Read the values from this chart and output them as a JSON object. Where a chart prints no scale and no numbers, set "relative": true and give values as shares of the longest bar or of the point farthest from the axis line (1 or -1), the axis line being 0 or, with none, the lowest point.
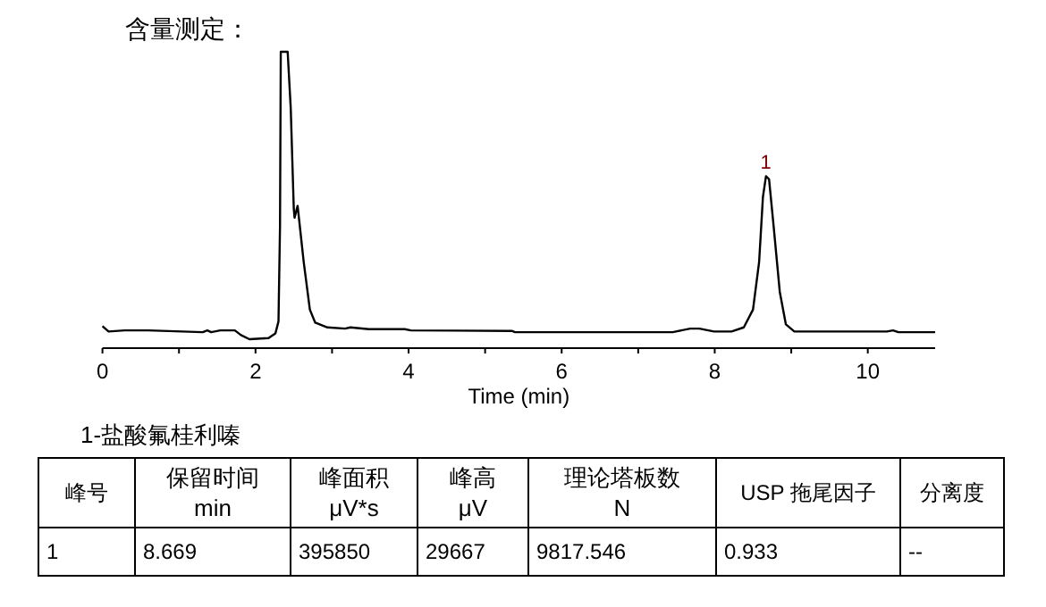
{
  "chart_data": {
    "type": "line",
    "title": "含量测定：",
    "xlabel": "Time (min)",
    "relative": true,
    "color": "#000000",
    "xlim": [
      0,
      10.88
    ],
    "xticks": [
      0,
      {
        "value": 1,
        "label": null
      },
      2,
      {
        "value": 3,
        "label": null
      },
      4,
      {
        "value": 5,
        "label": null
      },
      6,
      {
        "value": 7,
        "label": null
      },
      8,
      {
        "value": 9,
        "label": null
      },
      10
    ],
    "x": [
      0,
      0.08,
      0.29,
      0.6,
      1.31,
      1.37,
      1.42,
      1.54,
      1.73,
      1.81,
      1.92,
      2.17,
      2.26,
      2.3,
      2.32,
      2.33,
      2.42,
      2.46,
      2.5,
      2.51,
      2.55,
      2.63,
      2.71,
      2.78,
      2.94,
      3.17,
      3.24,
      3.48,
      3.95,
      4.03,
      5.35,
      5.39,
      7.45,
      7.68,
      7.8,
      7.99,
      8.22,
      8.38,
      8.5,
      8.58,
      8.63,
      8.67,
      8.71,
      8.77,
      8.85,
      8.93,
      9.04,
      10.25,
      10.33,
      10.4,
      10.88
    ],
    "values": [
      0.074,
      0.056,
      0.06,
      0.06,
      0.054,
      0.06,
      0.054,
      0.06,
      0.06,
      0.044,
      0.03,
      0.034,
      0.05,
      0.09,
      0.41,
      1.0,
      1.0,
      0.81,
      0.47,
      0.44,
      0.48,
      0.29,
      0.13,
      0.086,
      0.07,
      0.066,
      0.07,
      0.064,
      0.064,
      0.06,
      0.058,
      0.054,
      0.054,
      0.066,
      0.066,
      0.056,
      0.056,
      0.07,
      0.13,
      0.29,
      0.51,
      0.58,
      0.57,
      0.41,
      0.19,
      0.08,
      0.056,
      0.056,
      0.06,
      0.054,
      0.054
    ],
    "annotations": [
      {
        "text": "1",
        "x": 8.669,
        "y": 0.58
      },
      "1-盐酸氟桂利嗪",
      "峰号",
      "保留时间\nmin",
      "峰面积\nμV*s",
      "峰高\nμV",
      "理论塔板数\nN",
      "USP 拖尾因子",
      "分离度",
      "1",
      "8.669",
      "395850",
      "29667",
      "9817.546",
      "0.933",
      "--"
    ]
  }
}
